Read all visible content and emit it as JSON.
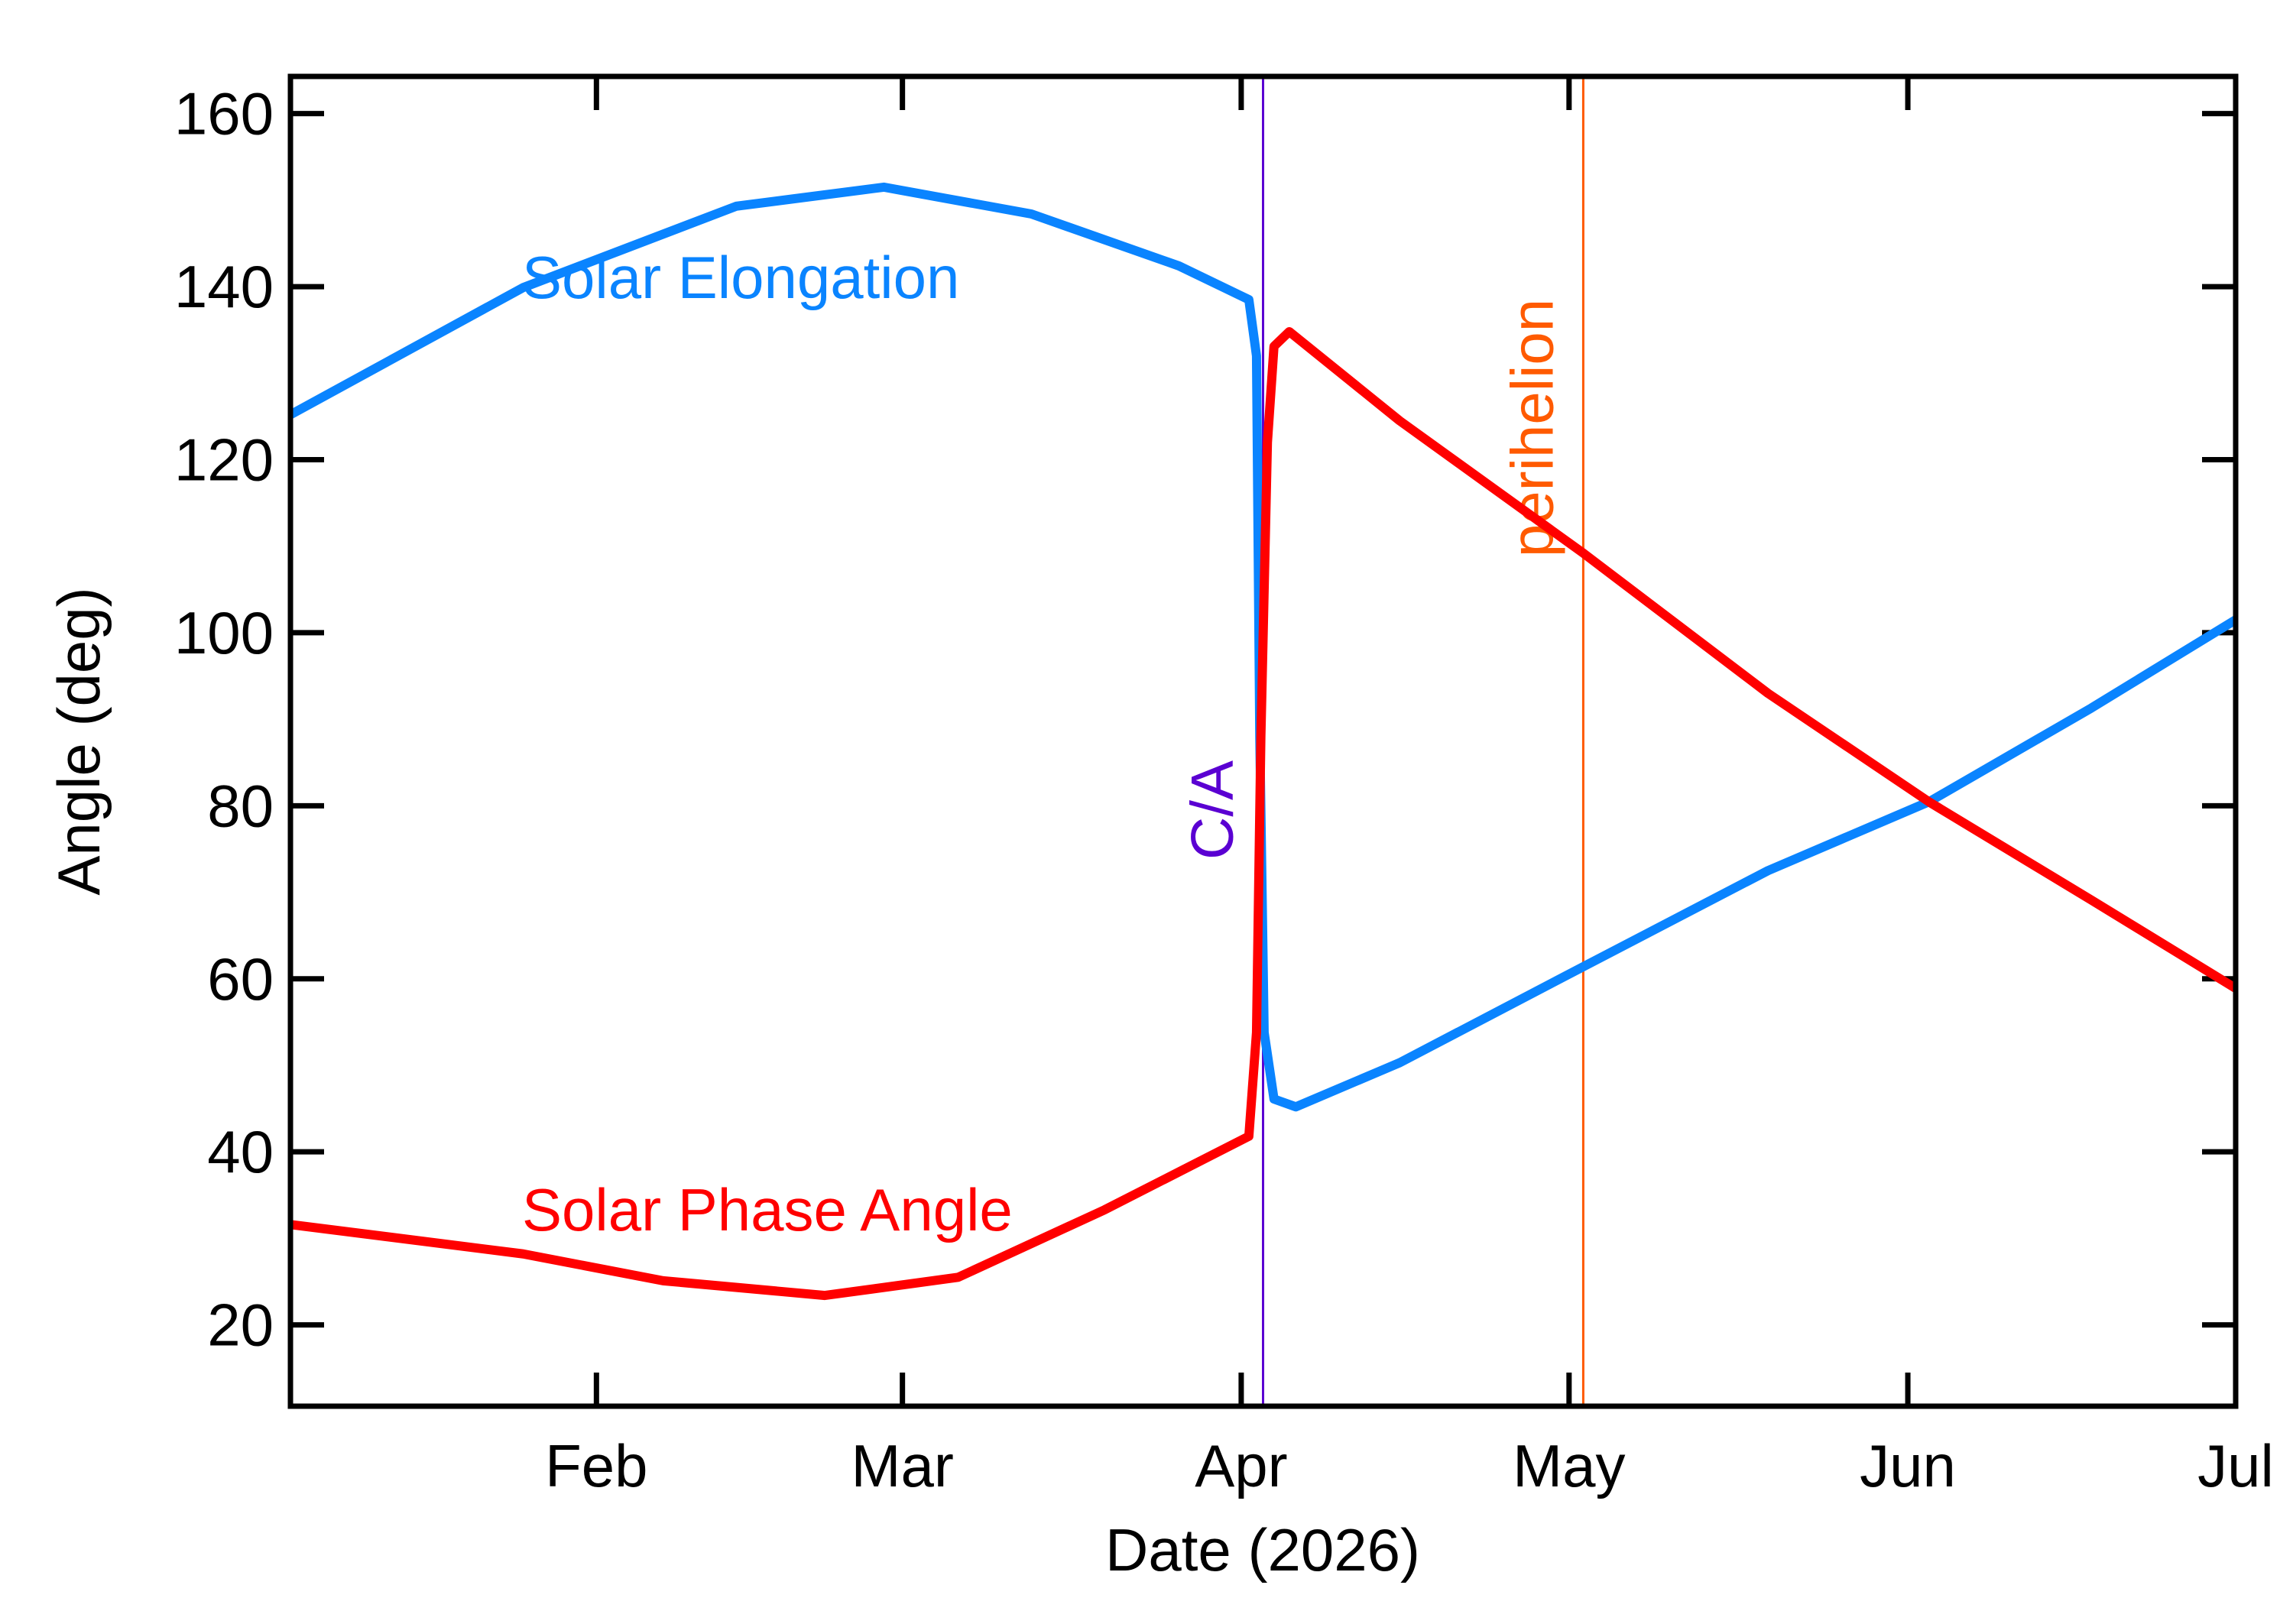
{
  "chart_data": {
    "type": "line",
    "x_label": "Date (2026)",
    "y_label": "Angle (deg)",
    "xlim": [
      3,
      181
    ],
    "ylim": [
      10.6,
      164.3
    ],
    "xticks": [
      {
        "value": 31,
        "label": "Feb"
      },
      {
        "value": 59,
        "label": "Mar"
      },
      {
        "value": 90,
        "label": "Apr"
      },
      {
        "value": 120,
        "label": "May"
      },
      {
        "value": 151,
        "label": "Jun"
      },
      {
        "value": 181,
        "label": "Jul"
      }
    ],
    "yticks": [
      20,
      40,
      60,
      80,
      100,
      120,
      140,
      160
    ],
    "series": [
      {
        "name": "Solar Elongation",
        "color": "#0a84ff",
        "x": [
          3,
          24.3,
          43.8,
          57.3,
          70.8,
          84.3,
          90.7,
          91.4,
          91.7,
          92.1,
          93,
          95,
          104.5,
          121.3,
          138.2,
          153,
          167.8,
          181
        ],
        "values": [
          125.2,
          139.9,
          149.3,
          151.5,
          148.4,
          142.4,
          138.5,
          132,
          88,
          53.8,
          46.1,
          45.2,
          50.3,
          61.4,
          72.5,
          80.5,
          91.3,
          101.5
        ]
      },
      {
        "name": "Solar Phase Angle",
        "color": "#ff0000",
        "x": [
          3,
          24.3,
          37.1,
          51.9,
          64.1,
          77.5,
          90.7,
          91.4,
          91.8,
          92.4,
          93,
          94.4,
          104.5,
          121.3,
          138.2,
          153,
          167.8,
          181
        ],
        "values": [
          31.6,
          28.2,
          25.1,
          23.4,
          25.5,
          33.3,
          41.8,
          53.8,
          87.9,
          122,
          133.1,
          134.8,
          124.5,
          109.2,
          93,
          80.4,
          69.1,
          58.9
        ]
      }
    ],
    "annotations": [
      {
        "text": "C/A",
        "x": 92,
        "color": "#5a00d2"
      },
      {
        "text": "perihelion",
        "x": 121.3,
        "color": "#ff5a00"
      }
    ]
  }
}
